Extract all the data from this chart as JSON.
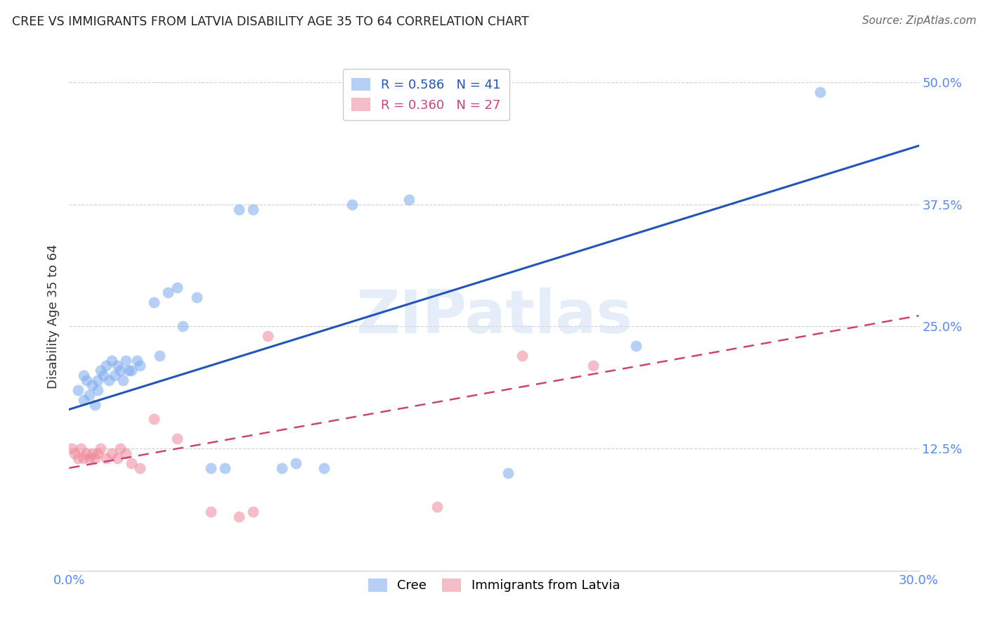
{
  "title": "CREE VS IMMIGRANTS FROM LATVIA DISABILITY AGE 35 TO 64 CORRELATION CHART",
  "source": "Source: ZipAtlas.com",
  "tick_color": "#5588ff",
  "ylabel": "Disability Age 35 to 64",
  "xlim": [
    0.0,
    0.3
  ],
  "ylim": [
    0.0,
    0.52
  ],
  "x_ticks": [
    0.0,
    0.05,
    0.1,
    0.15,
    0.2,
    0.25,
    0.3
  ],
  "x_tick_labels": [
    "0.0%",
    "",
    "",
    "",
    "",
    "",
    "30.0%"
  ],
  "y_ticks": [
    0.0,
    0.125,
    0.25,
    0.375,
    0.5
  ],
  "y_tick_labels": [
    "",
    "12.5%",
    "25.0%",
    "37.5%",
    "50.0%"
  ],
  "watermark_text": "ZIPatlas",
  "cree_R": "0.586",
  "cree_N": 41,
  "latvia_R": "0.360",
  "latvia_N": 27,
  "cree_color": "#7aaaee",
  "latvia_color": "#ee8899",
  "cree_line_color": "#2255bb",
  "latvia_line_color": "#cc4477",
  "latvia_line_dash": [
    6,
    4
  ],
  "cree_line_intercept": 0.165,
  "cree_line_slope": 0.9,
  "latvia_line_intercept": 0.105,
  "latvia_line_slope": 0.52,
  "cree_scatter_x": [
    0.003,
    0.005,
    0.005,
    0.006,
    0.007,
    0.008,
    0.009,
    0.01,
    0.01,
    0.011,
    0.012,
    0.013,
    0.014,
    0.015,
    0.016,
    0.017,
    0.018,
    0.019,
    0.02,
    0.021,
    0.022,
    0.024,
    0.025,
    0.03,
    0.032,
    0.035,
    0.038,
    0.04,
    0.045,
    0.05,
    0.055,
    0.06,
    0.065,
    0.075,
    0.08,
    0.09,
    0.1,
    0.12,
    0.155,
    0.2,
    0.265
  ],
  "cree_scatter_y": [
    0.185,
    0.2,
    0.175,
    0.195,
    0.18,
    0.19,
    0.17,
    0.195,
    0.185,
    0.205,
    0.2,
    0.21,
    0.195,
    0.215,
    0.2,
    0.21,
    0.205,
    0.195,
    0.215,
    0.205,
    0.205,
    0.215,
    0.21,
    0.275,
    0.22,
    0.285,
    0.29,
    0.25,
    0.28,
    0.105,
    0.105,
    0.37,
    0.37,
    0.105,
    0.11,
    0.105,
    0.375,
    0.38,
    0.1,
    0.23,
    0.49
  ],
  "latvia_scatter_x": [
    0.001,
    0.002,
    0.003,
    0.004,
    0.005,
    0.006,
    0.007,
    0.008,
    0.009,
    0.01,
    0.011,
    0.013,
    0.015,
    0.017,
    0.018,
    0.02,
    0.022,
    0.025,
    0.03,
    0.038,
    0.05,
    0.06,
    0.065,
    0.07,
    0.13,
    0.16,
    0.185
  ],
  "latvia_scatter_y": [
    0.125,
    0.12,
    0.115,
    0.125,
    0.115,
    0.12,
    0.115,
    0.12,
    0.115,
    0.12,
    0.125,
    0.115,
    0.12,
    0.115,
    0.125,
    0.12,
    0.11,
    0.105,
    0.155,
    0.135,
    0.06,
    0.055,
    0.06,
    0.24,
    0.065,
    0.22,
    0.21
  ]
}
